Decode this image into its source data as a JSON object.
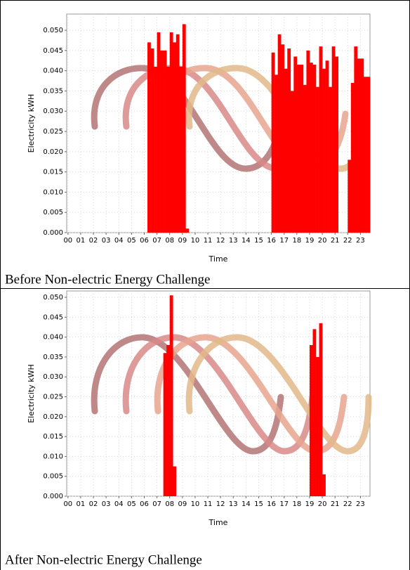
{
  "chart_data": [
    {
      "type": "bar",
      "caption": "Before Non-electric Energy Challenge",
      "xlabel": "Time",
      "ylabel": "Electricity kWH",
      "color": "#ff0000",
      "bar_width": 0.25,
      "grid": true,
      "x": [
        6.25,
        6.5,
        6.75,
        7.0,
        7.25,
        7.5,
        7.75,
        8.0,
        8.25,
        8.5,
        8.75,
        9.0,
        9.25,
        16.0,
        16.25,
        16.5,
        16.75,
        17.0,
        17.25,
        17.5,
        17.75,
        18.0,
        18.25,
        18.5,
        18.75,
        19.0,
        19.25,
        19.5,
        19.75,
        20.0,
        20.25,
        20.5,
        20.75,
        21.0,
        22.0,
        22.25,
        22.5,
        22.75,
        23.0,
        23.25,
        23.5
      ],
      "values": [
        0.047,
        0.0455,
        0.041,
        0.0495,
        0.045,
        0.045,
        0.041,
        0.0495,
        0.047,
        0.049,
        0.041,
        0.0515,
        0.001,
        0.0445,
        0.039,
        0.049,
        0.0465,
        0.0405,
        0.0455,
        0.035,
        0.0435,
        0.0415,
        0.0415,
        0.0365,
        0.045,
        0.042,
        0.0415,
        0.036,
        0.046,
        0.0405,
        0.0425,
        0.036,
        0.046,
        0.0435,
        0.018,
        0.037,
        0.046,
        0.043,
        0.043,
        0.0385,
        0.0385
      ],
      "xlim": [
        -0.1,
        23.75
      ],
      "ylim": [
        0,
        0.054
      ],
      "xticks": [
        {
          "value": 0,
          "label": "00"
        },
        {
          "value": 1,
          "label": "01"
        },
        {
          "value": 2,
          "label": "02"
        },
        {
          "value": 3,
          "label": "03"
        },
        {
          "value": 4,
          "label": "04"
        },
        {
          "value": 5,
          "label": "05"
        },
        {
          "value": 6,
          "label": "06"
        },
        {
          "value": 7,
          "label": "07"
        },
        {
          "value": 8,
          "label": "08"
        },
        {
          "value": 9,
          "label": "09"
        },
        10,
        11,
        12,
        13,
        14,
        15,
        16,
        17,
        18,
        19,
        20,
        21,
        22,
        23
      ],
      "yticks": [
        {
          "value": 0,
          "label": "0.000"
        },
        {
          "value": 0.005,
          "label": "0.005"
        },
        {
          "value": 0.01,
          "label": "0.010"
        },
        {
          "value": 0.015,
          "label": "0.015"
        },
        {
          "value": 0.02,
          "label": "0.020"
        },
        {
          "value": 0.025,
          "label": "0.025"
        },
        {
          "value": 0.03,
          "label": "0.030"
        },
        {
          "value": 0.035,
          "label": "0.035"
        },
        {
          "value": 0.04,
          "label": "0.040"
        },
        {
          "value": 0.045,
          "label": "0.045"
        },
        {
          "value": 0.05,
          "label": "0.050"
        }
      ]
    },
    {
      "type": "bar",
      "caption": "After Non-electric Energy Challenge",
      "xlabel": "Time",
      "ylabel": "Electricity kWH",
      "color": "#ff0000",
      "bar_width": 0.25,
      "grid": true,
      "x": [
        7.5,
        7.75,
        8.0,
        8.25,
        19.0,
        19.25,
        19.5,
        19.75,
        20.0
      ],
      "values": [
        0.036,
        0.038,
        0.0505,
        0.0075,
        0.038,
        0.042,
        0.035,
        0.0435,
        0.0055
      ],
      "xlim": [
        -0.1,
        23.75
      ],
      "ylim": [
        0,
        0.0516
      ],
      "xticks": [
        {
          "value": 0,
          "label": "00"
        },
        {
          "value": 1,
          "label": "01"
        },
        {
          "value": 2,
          "label": "02"
        },
        {
          "value": 3,
          "label": "03"
        },
        {
          "value": 4,
          "label": "04"
        },
        {
          "value": 5,
          "label": "05"
        },
        {
          "value": 6,
          "label": "06"
        },
        {
          "value": 7,
          "label": "07"
        },
        {
          "value": 8,
          "label": "08"
        },
        {
          "value": 9,
          "label": "09"
        },
        10,
        11,
        12,
        13,
        14,
        15,
        16,
        17,
        18,
        19,
        20,
        21,
        22,
        23
      ],
      "yticks": [
        {
          "value": 0,
          "label": "0.000"
        },
        {
          "value": 0.005,
          "label": "0.005"
        },
        {
          "value": 0.01,
          "label": "0.010"
        },
        {
          "value": 0.015,
          "label": "0.015"
        },
        {
          "value": 0.02,
          "label": "0.020"
        },
        {
          "value": 0.025,
          "label": "0.025"
        },
        {
          "value": 0.03,
          "label": "0.030"
        },
        {
          "value": 0.035,
          "label": "0.035"
        },
        {
          "value": 0.04,
          "label": "0.040"
        },
        {
          "value": 0.045,
          "label": "0.045"
        },
        {
          "value": 0.05,
          "label": "0.050"
        }
      ]
    }
  ]
}
